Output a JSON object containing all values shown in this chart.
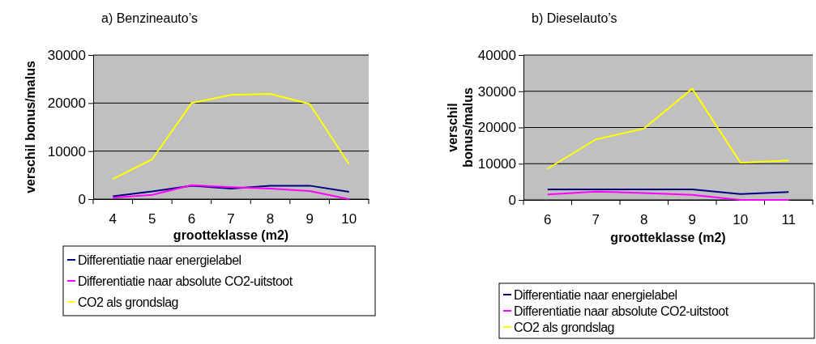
{
  "chart_data": [
    {
      "type": "line",
      "title": "a) Benzineauto’s",
      "xlabel": "grootteklasse (m2)",
      "ylabel": "verschil bonus/malus",
      "categories": [
        "4",
        "5",
        "6",
        "7",
        "8",
        "9",
        "10"
      ],
      "ylim": [
        0,
        30000
      ],
      "yticks": [
        0,
        10000,
        20000,
        30000
      ],
      "grid": "y",
      "legend": "bottom",
      "marker": "none",
      "series": [
        {
          "name": "Differentiatie naar energielabel",
          "color": "#000080",
          "values": [
            600,
            1600,
            2800,
            2200,
            2800,
            2800,
            1500
          ]
        },
        {
          "name": "Differentiatie naar absolute CO2-uitstoot",
          "color": "#ff00ff",
          "values": [
            300,
            900,
            2900,
            2500,
            2200,
            1700,
            0
          ]
        },
        {
          "name": "CO2 als grondslag",
          "color": "#ffff00",
          "values": [
            4200,
            8300,
            20000,
            21700,
            21900,
            19800,
            7300
          ]
        }
      ]
    },
    {
      "type": "line",
      "title": "b) Dieselauto’s",
      "xlabel": "grootteklasse (m2)",
      "ylabel": "verschil bonus/malus",
      "categories": [
        "6",
        "7",
        "8",
        "9",
        "10",
        "11"
      ],
      "ylim": [
        0,
        40000
      ],
      "yticks": [
        0,
        10000,
        20000,
        30000,
        40000
      ],
      "grid": "y",
      "legend": "bottom",
      "marker": "none",
      "series": [
        {
          "name": "Differentiatie naar energielabel",
          "color": "#000080",
          "values": [
            2900,
            2900,
            2900,
            2900,
            1600,
            2200
          ]
        },
        {
          "name": "Differentiatie naar absolute CO2-uitstoot",
          "color": "#ff00ff",
          "values": [
            1500,
            2300,
            1900,
            1400,
            0,
            0
          ]
        },
        {
          "name": "CO2 als grondslag",
          "color": "#ffff00",
          "values": [
            8600,
            16700,
            19700,
            30700,
            10300,
            10900
          ]
        }
      ]
    }
  ]
}
